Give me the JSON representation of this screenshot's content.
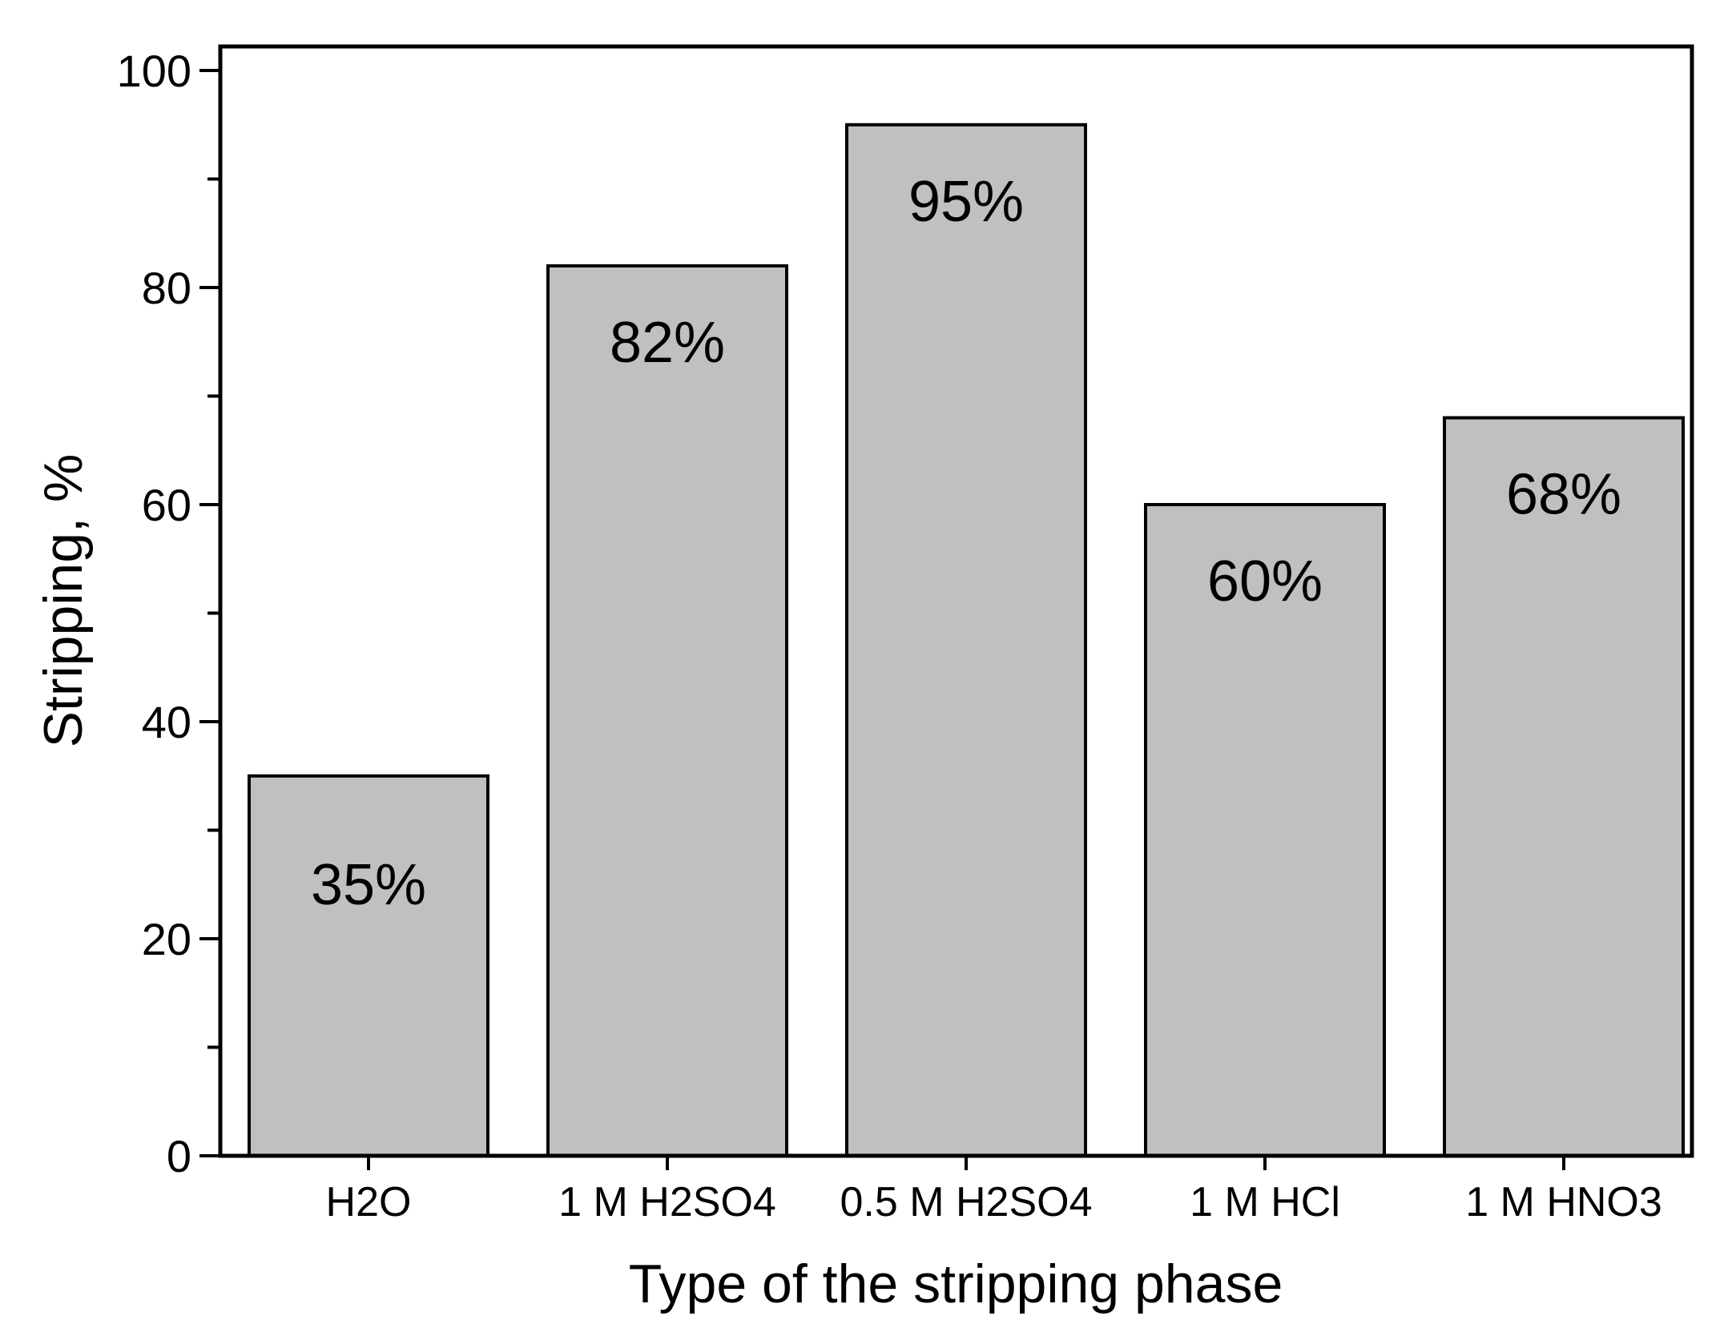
{
  "chart_data": {
    "type": "bar",
    "categories": [
      "H2O",
      "1 M H2SO4",
      "0.5 M H2SO4",
      "1 M HCl",
      "1 M HNO3"
    ],
    "values": [
      35,
      82,
      95,
      60,
      68
    ],
    "value_labels": [
      "35%",
      "82%",
      "95%",
      "60%",
      "68%"
    ],
    "xlabel": "Type of the stripping phase",
    "ylabel": "Stripping, %",
    "ylim": [
      0,
      100
    ],
    "yticks": [
      0,
      20,
      40,
      60,
      80,
      100
    ],
    "y_minor_step": 10,
    "grid": false,
    "colors": {
      "bar_fill": "#c0c0c0",
      "bar_stroke": "#000000",
      "axis": "#000000",
      "background": "#ffffff"
    }
  }
}
